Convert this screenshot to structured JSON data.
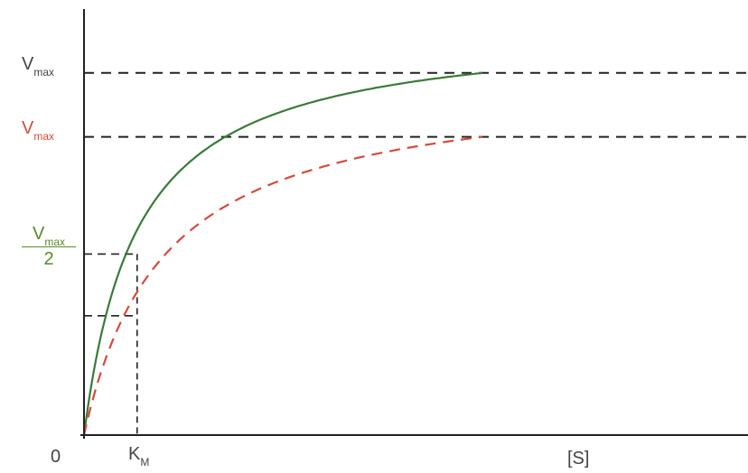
{
  "colors": {
    "axis": "#222222",
    "guide": "#222222",
    "normal_curve": "#3a7a3a",
    "inhibited_curve": "#d34b3b",
    "label_dark": "#444444",
    "label_red": "#d34b3b",
    "label_green": "#5a8a2a"
  },
  "labels": {
    "origin": "0",
    "km_main": "K",
    "km_sub": "M",
    "s_axis": "[S]",
    "vmax_main": "V",
    "vmax_sub": "max",
    "vmax_app_main": "V",
    "vmax_app_sub": "max",
    "half_num_main": "V",
    "half_num_sub": "max",
    "half_den": "2"
  },
  "chart_data": {
    "type": "line",
    "x_max": 10,
    "y_max": 1.0,
    "series": [
      {
        "vmax": 0.85,
        "km": 0.8,
        "style": "solid",
        "color": "#3a7a3a",
        "guide": "Vmax"
      },
      {
        "vmax": 0.7,
        "km": 1.2,
        "style": "dashed",
        "color": "#d34b3b",
        "guide": "Vmax (inhibited)"
      }
    ],
    "km_marker": 0.8,
    "half_vmax_level": 0.425,
    "inhibited_at_km_level": 0.28
  }
}
